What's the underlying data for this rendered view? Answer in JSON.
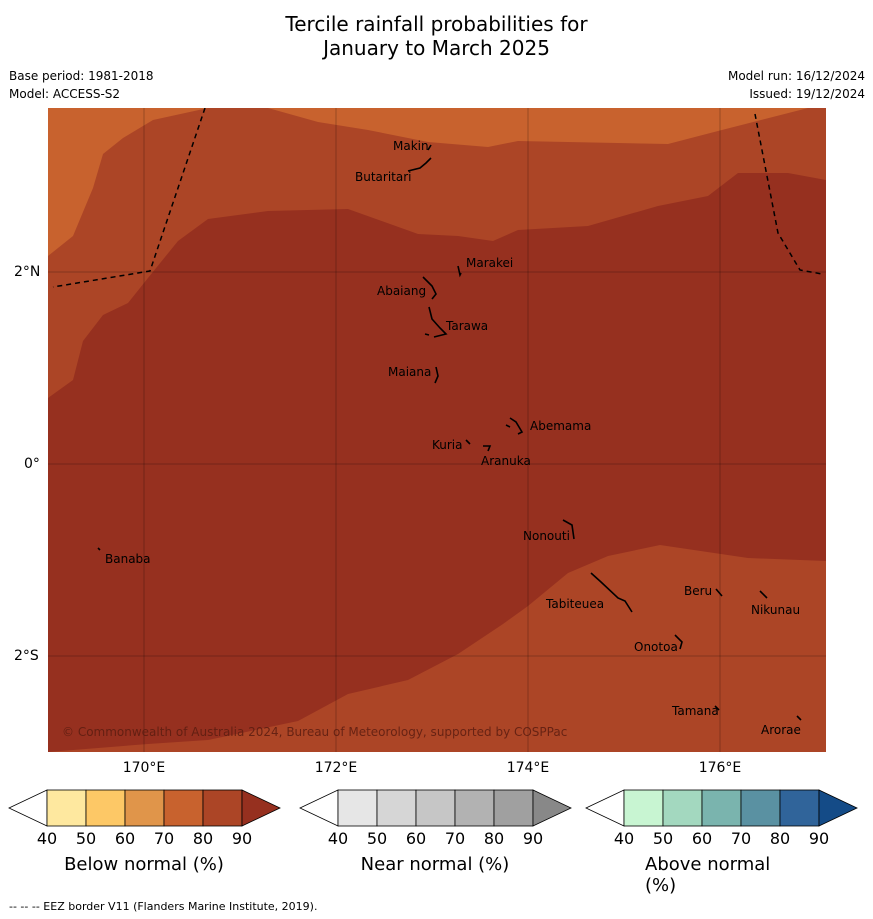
{
  "title_line1": "Tercile rainfall probabilities for",
  "title_line2": "January to March 2025",
  "meta": {
    "base_period": "Base period: 1981-2018",
    "model": "Model: ACCESS-S2",
    "model_run": "Model run: 16/12/2024",
    "issued": "Issued: 19/12/2024"
  },
  "map": {
    "lon_labels": [
      "170°E",
      "172°E",
      "174°E",
      "176°E"
    ],
    "lat_labels": [
      "2°N",
      "0°",
      "2°S"
    ],
    "copyright": "© Commonwealth of Australia 2024, Bureau of Meteorology, supported by COSPPac",
    "places": [
      "Makin",
      "Butaritari",
      "Marakei",
      "Abaiang",
      "Tarawa",
      "Maiana",
      "Abemama",
      "Kuria",
      "Aranuka",
      "Nonouti",
      "Banaba",
      "Beru",
      "Tabiteuea",
      "Nikunau",
      "Onotoa",
      "Tamana",
      "Arorae"
    ],
    "zone_colors": {
      "70-80": "#c8622e",
      "80-90": "#ac4526",
      "90+": "#96301f"
    }
  },
  "colorbars": [
    {
      "label": "Below normal (%)",
      "ticks": [
        "40",
        "50",
        "60",
        "70",
        "80",
        "90"
      ],
      "colors": [
        "#ffffff",
        "#fee89f",
        "#fdc866",
        "#e0954a",
        "#c8622e",
        "#ac4526",
        "#96301f"
      ]
    },
    {
      "label": "Near normal (%)",
      "ticks": [
        "40",
        "50",
        "60",
        "70",
        "80",
        "90"
      ],
      "colors": [
        "#ffffff",
        "#e6e6e6",
        "#d6d6d6",
        "#c6c6c6",
        "#b2b2b2",
        "#a0a0a0",
        "#888888"
      ]
    },
    {
      "label": "Above normal (%)",
      "ticks": [
        "40",
        "50",
        "60",
        "70",
        "80",
        "90"
      ],
      "colors": [
        "#ffffff",
        "#c8f5d2",
        "#a3d8bf",
        "#7ab4ae",
        "#5a91a2",
        "#30649a",
        "#144b87"
      ]
    }
  ],
  "footnote": "--  --  -- EEZ border V11 (Flanders Marine Institute, 2019)."
}
